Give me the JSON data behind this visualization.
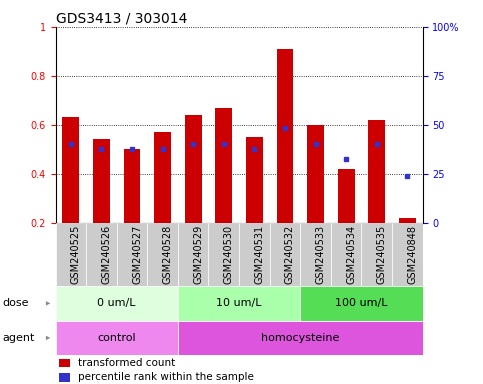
{
  "title": "GDS3413 / 303014",
  "samples": [
    "GSM240525",
    "GSM240526",
    "GSM240527",
    "GSM240528",
    "GSM240529",
    "GSM240530",
    "GSM240531",
    "GSM240532",
    "GSM240533",
    "GSM240534",
    "GSM240535",
    "GSM240848"
  ],
  "transformed_count": [
    0.63,
    0.54,
    0.5,
    0.57,
    0.64,
    0.67,
    0.55,
    0.91,
    0.6,
    0.42,
    0.62,
    0.22
  ],
  "percentile_rank_left": [
    0.52,
    0.5,
    0.5,
    0.5,
    0.52,
    0.52,
    0.5,
    0.585,
    0.52,
    0.46,
    0.52,
    0.39
  ],
  "bar_bottom": 0.2,
  "ylim": [
    0.2,
    1.0
  ],
  "y2lim": [
    0,
    100
  ],
  "yticks_left": [
    0.2,
    0.4,
    0.6,
    0.8,
    1.0
  ],
  "ytick_labels_left": [
    "0.2",
    "0.4",
    "0.6",
    "0.8",
    "1"
  ],
  "y2ticks": [
    0,
    25,
    50,
    75,
    100
  ],
  "y2tick_labels": [
    "0",
    "25",
    "50",
    "75",
    "100%"
  ],
  "bar_color": "#cc0000",
  "dot_color": "#3333cc",
  "dose_groups": [
    {
      "label": "0 um/L",
      "start": 0,
      "end": 4,
      "color": "#ddffdd"
    },
    {
      "label": "10 um/L",
      "start": 4,
      "end": 8,
      "color": "#aaffaa"
    },
    {
      "label": "100 um/L",
      "start": 8,
      "end": 12,
      "color": "#55dd55"
    }
  ],
  "agent_groups": [
    {
      "label": "control",
      "start": 0,
      "end": 4,
      "color": "#ee88ee"
    },
    {
      "label": "homocysteine",
      "start": 4,
      "end": 12,
      "color": "#dd55dd"
    }
  ],
  "dose_label": "dose",
  "agent_label": "agent",
  "legend_items": [
    {
      "color": "#cc0000",
      "label": "transformed count"
    },
    {
      "color": "#3333cc",
      "label": "percentile rank within the sample"
    }
  ],
  "plot_bg": "#ffffff",
  "xticklabel_bg": "#cccccc",
  "title_fontsize": 10,
  "tick_fontsize": 7,
  "label_fontsize": 8,
  "row_label_fontsize": 8,
  "legend_fontsize": 7.5
}
